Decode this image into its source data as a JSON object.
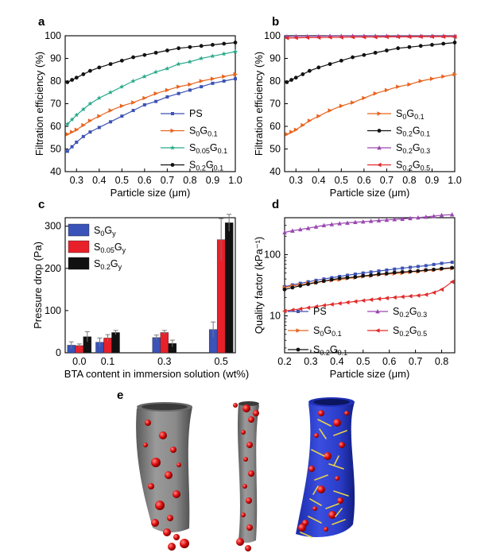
{
  "panels": {
    "a": "a",
    "b": "b",
    "c": "c",
    "d": "d",
    "e": "e"
  },
  "colors": {
    "PS": "#3c52b4",
    "S0G0.1": "#e8641e",
    "S0.05G0.1": "#2aa98a",
    "S0.2G0.1": "#111111",
    "S0.2G0.3": "#9a48b0",
    "S0.2G0.5": "#e12b2b",
    "c_S0Gy": "#3a53b8",
    "c_S005Gy": "#e8202a",
    "c_S02Gy": "#111111"
  },
  "chart_data": [
    {
      "panel": "a",
      "type": "line",
      "xlabel": "Particle size (μm)",
      "ylabel": "Filtration efficiency (%)",
      "xlim": [
        0.25,
        1.0
      ],
      "ylim": [
        40,
        100
      ],
      "xticks": [
        "0.3",
        "0.4",
        "0.5",
        "0.6",
        "0.7",
        "0.8",
        "0.9",
        "1.0"
      ],
      "yticks": [
        "40",
        "50",
        "60",
        "70",
        "80",
        "90",
        "100"
      ],
      "legend_position": "bottom-right",
      "series": [
        {
          "name": "PS",
          "sub": "",
          "color_key": "PS",
          "x": [
            0.26,
            0.28,
            0.3,
            0.33,
            0.36,
            0.4,
            0.45,
            0.5,
            0.55,
            0.6,
            0.65,
            0.7,
            0.75,
            0.8,
            0.85,
            0.9,
            0.95,
            1.0
          ],
          "y": [
            49,
            51,
            53,
            55.5,
            57.5,
            59.5,
            62,
            64.5,
            67,
            69.5,
            71,
            73,
            74.5,
            76,
            77.5,
            79,
            80,
            81
          ]
        },
        {
          "name": "S",
          "sub": "0",
          "name2": "G",
          "sub2": "0.1",
          "color_key": "S0G0.1",
          "x": [
            0.26,
            0.28,
            0.3,
            0.33,
            0.36,
            0.4,
            0.45,
            0.5,
            0.55,
            0.6,
            0.65,
            0.7,
            0.75,
            0.8,
            0.85,
            0.9,
            0.95,
            1.0
          ],
          "y": [
            56.5,
            57.5,
            58.5,
            60.5,
            62.5,
            64.5,
            67,
            69,
            70.5,
            72.5,
            74.5,
            76,
            77.5,
            78.5,
            80,
            81,
            82,
            83
          ]
        },
        {
          "name": "S",
          "sub": "0.05",
          "name2": "G",
          "sub2": "0.1",
          "color_key": "S0.05G0.1",
          "x": [
            0.26,
            0.28,
            0.3,
            0.33,
            0.36,
            0.4,
            0.45,
            0.5,
            0.55,
            0.6,
            0.65,
            0.7,
            0.75,
            0.8,
            0.85,
            0.9,
            0.95,
            1.0
          ],
          "y": [
            61,
            63,
            65,
            67.5,
            70,
            72.5,
            75,
            77.5,
            80,
            82,
            84,
            85.5,
            87.5,
            88.5,
            90,
            91,
            92,
            93
          ]
        },
        {
          "name": "S",
          "sub": "0.2",
          "name2": "G",
          "sub2": "0.1",
          "color_key": "S0.2G0.1",
          "x": [
            0.26,
            0.28,
            0.3,
            0.33,
            0.36,
            0.4,
            0.45,
            0.5,
            0.55,
            0.6,
            0.65,
            0.7,
            0.75,
            0.8,
            0.85,
            0.9,
            0.95,
            1.0
          ],
          "y": [
            79.5,
            80.5,
            81.5,
            83,
            84.5,
            86,
            87.5,
            89,
            90.5,
            91.5,
            92.5,
            93.5,
            94.5,
            95,
            95.5,
            96,
            96.5,
            97
          ]
        }
      ]
    },
    {
      "panel": "b",
      "type": "line",
      "xlabel": "Particle size (μm)",
      "ylabel": "Filtration efficiency (%)",
      "xlim": [
        0.25,
        1.0
      ],
      "ylim": [
        40,
        100
      ],
      "xticks": [
        "0.3",
        "0.4",
        "0.5",
        "0.6",
        "0.7",
        "0.8",
        "0.9",
        "1.0"
      ],
      "yticks": [
        "40",
        "50",
        "60",
        "70",
        "80",
        "90",
        "100"
      ],
      "legend_position": "bottom-right",
      "series": [
        {
          "name": "S",
          "sub": "0",
          "name2": "G",
          "sub2": "0.1",
          "color_key": "S0G0.1",
          "x": [
            0.26,
            0.28,
            0.3,
            0.33,
            0.36,
            0.4,
            0.45,
            0.5,
            0.55,
            0.6,
            0.65,
            0.7,
            0.75,
            0.8,
            0.85,
            0.9,
            0.95,
            1.0
          ],
          "y": [
            56.5,
            57.5,
            58.5,
            60.5,
            62.5,
            64.5,
            67,
            69,
            70.5,
            72.5,
            74.5,
            76,
            77.5,
            78.5,
            80,
            81,
            82,
            83
          ]
        },
        {
          "name": "S",
          "sub": "0.2",
          "name2": "G",
          "sub2": "0.1",
          "color_key": "S0.2G0.1",
          "x": [
            0.26,
            0.28,
            0.3,
            0.33,
            0.36,
            0.4,
            0.45,
            0.5,
            0.55,
            0.6,
            0.65,
            0.7,
            0.75,
            0.8,
            0.85,
            0.9,
            0.95,
            1.0
          ],
          "y": [
            79.5,
            80.5,
            81.5,
            83,
            84.5,
            86,
            87.5,
            89,
            90.5,
            91.5,
            92.5,
            93.5,
            94.5,
            95,
            95.5,
            96,
            96.5,
            97
          ]
        },
        {
          "name": "S",
          "sub": "0.2",
          "name2": "G",
          "sub2": "0.3",
          "color_key": "S0.2G0.3",
          "x": [
            0.26,
            0.3,
            0.35,
            0.4,
            0.45,
            0.5,
            0.55,
            0.6,
            0.65,
            0.7,
            0.75,
            0.8,
            0.85,
            0.9,
            0.95,
            1.0
          ],
          "y": [
            99.7,
            99.8,
            99.8,
            99.8,
            99.9,
            99.9,
            99.9,
            99.9,
            99.9,
            99.9,
            99.9,
            99.9,
            99.9,
            99.9,
            99.9,
            99.9
          ]
        },
        {
          "name": "S",
          "sub": "0.2",
          "name2": "G",
          "sub2": "0.5",
          "color_key": "S0.2G0.5",
          "x": [
            0.26,
            0.3,
            0.35,
            0.4,
            0.45,
            0.5,
            0.55,
            0.6,
            0.65,
            0.7,
            0.75,
            0.8,
            0.85,
            0.9,
            0.95,
            1.0
          ],
          "y": [
            99.0,
            99.1,
            99.2,
            99.2,
            99.3,
            99.3,
            99.4,
            99.4,
            99.4,
            99.5,
            99.5,
            99.5,
            99.6,
            99.6,
            99.6,
            99.6
          ]
        }
      ]
    },
    {
      "panel": "c",
      "type": "bar",
      "xlabel": "BTA content in immersion solution (wt%)",
      "ylabel": "Pressure drop (Pa)",
      "categories": [
        "0.0",
        "0.1",
        "0.3",
        "0.5"
      ],
      "category_x": [
        0.0,
        0.1,
        0.3,
        0.5
      ],
      "xlim": [
        -0.05,
        0.55
      ],
      "ylim": [
        0,
        320
      ],
      "yticks": [
        "0",
        "100",
        "200",
        "300"
      ],
      "legend_position": "top-left",
      "series": [
        {
          "name": "S",
          "sub": "0",
          "name2": "G",
          "sub2": "y",
          "color_key": "c_S0Gy",
          "values": [
            18,
            25,
            36,
            55
          ],
          "err": [
            8,
            10,
            6,
            18
          ]
        },
        {
          "name": "S",
          "sub": "0.05",
          "name2": "G",
          "sub2": "y",
          "color_key": "c_S005Gy",
          "values": [
            17,
            35,
            48,
            268
          ],
          "err": [
            4,
            8,
            5,
            50
          ]
        },
        {
          "name": "S",
          "sub": "0.2",
          "name2": "G",
          "sub2": "y",
          "color_key": "c_S02Gy",
          "values": [
            38,
            48,
            22,
            308
          ],
          "err": [
            12,
            5,
            8,
            20
          ]
        }
      ]
    },
    {
      "panel": "d",
      "type": "line",
      "xlabel": "Particle size (μm)",
      "ylabel": "Quality factor (kPa⁻¹)",
      "xlim": [
        0.2,
        0.85
      ],
      "ylim": [
        2.5,
        400
      ],
      "yscale": "log",
      "xticks": [
        "0.2",
        "0.3",
        "0.4",
        "0.5",
        "0.6",
        "0.7",
        "0.8"
      ],
      "yticks": [
        "10",
        "100"
      ],
      "legend_position": "bottom",
      "series": [
        {
          "name": "PS",
          "sub": "",
          "color_key": "PS",
          "x": [
            0.2,
            0.23,
            0.26,
            0.29,
            0.32,
            0.35,
            0.38,
            0.41,
            0.44,
            0.47,
            0.5,
            0.53,
            0.56,
            0.59,
            0.62,
            0.65,
            0.68,
            0.71,
            0.74,
            0.77,
            0.8,
            0.84
          ],
          "y": [
            30,
            32,
            34,
            36,
            38,
            40,
            42,
            44,
            46,
            48,
            50,
            52,
            54,
            56,
            58,
            60,
            62,
            64,
            66,
            69,
            72,
            75
          ]
        },
        {
          "name": "S",
          "sub": "0",
          "name2": "G",
          "sub2": "0.1",
          "color_key": "S0G0.1",
          "x": [
            0.2,
            0.23,
            0.26,
            0.29,
            0.32,
            0.35,
            0.38,
            0.41,
            0.44,
            0.47,
            0.5,
            0.53,
            0.56,
            0.59,
            0.62,
            0.65,
            0.68,
            0.71,
            0.74,
            0.77,
            0.8,
            0.84
          ],
          "y": [
            29,
            31,
            32,
            34,
            35,
            37,
            38,
            39,
            41,
            42,
            44,
            45,
            47,
            48,
            49,
            50,
            52,
            53,
            55,
            56,
            58,
            60
          ]
        },
        {
          "name": "S",
          "sub": "0.2",
          "name2": "G",
          "sub2": "0.1",
          "color_key": "S0.2G0.1",
          "x": [
            0.2,
            0.23,
            0.26,
            0.29,
            0.32,
            0.35,
            0.38,
            0.41,
            0.44,
            0.47,
            0.5,
            0.53,
            0.56,
            0.59,
            0.62,
            0.65,
            0.68,
            0.71,
            0.74,
            0.77,
            0.8,
            0.84
          ],
          "y": [
            27,
            29,
            31,
            33,
            35,
            37,
            39,
            41,
            42,
            43,
            45,
            46,
            48,
            49,
            51,
            52,
            53,
            54,
            56,
            57,
            59,
            61
          ]
        },
        {
          "name": "S",
          "sub": "0.2",
          "name2": "G",
          "sub2": "0.3",
          "color_key": "S0.2G0.3",
          "x": [
            0.2,
            0.23,
            0.26,
            0.29,
            0.32,
            0.35,
            0.38,
            0.41,
            0.44,
            0.47,
            0.5,
            0.53,
            0.56,
            0.59,
            0.62,
            0.65,
            0.68,
            0.71,
            0.74,
            0.77,
            0.8,
            0.84
          ],
          "y": [
            230,
            245,
            258,
            270,
            285,
            300,
            312,
            322,
            330,
            338,
            345,
            352,
            360,
            368,
            375,
            382,
            392,
            402,
            412,
            425,
            440,
            450
          ]
        },
        {
          "name": "S",
          "sub": "0.2",
          "name2": "G",
          "sub2": "0.5",
          "color_key": "S0.2G0.5",
          "x": [
            0.2,
            0.23,
            0.26,
            0.29,
            0.32,
            0.35,
            0.38,
            0.41,
            0.44,
            0.47,
            0.5,
            0.53,
            0.56,
            0.59,
            0.62,
            0.65,
            0.68,
            0.71,
            0.74,
            0.77,
            0.8,
            0.84
          ],
          "y": [
            12,
            12.5,
            13,
            13.6,
            14.2,
            14.8,
            15.4,
            16,
            16.6,
            17.2,
            17.8,
            18.4,
            19,
            19.5,
            20,
            20.5,
            21,
            21.5,
            22.2,
            24,
            27,
            36
          ]
        }
      ]
    }
  ]
}
